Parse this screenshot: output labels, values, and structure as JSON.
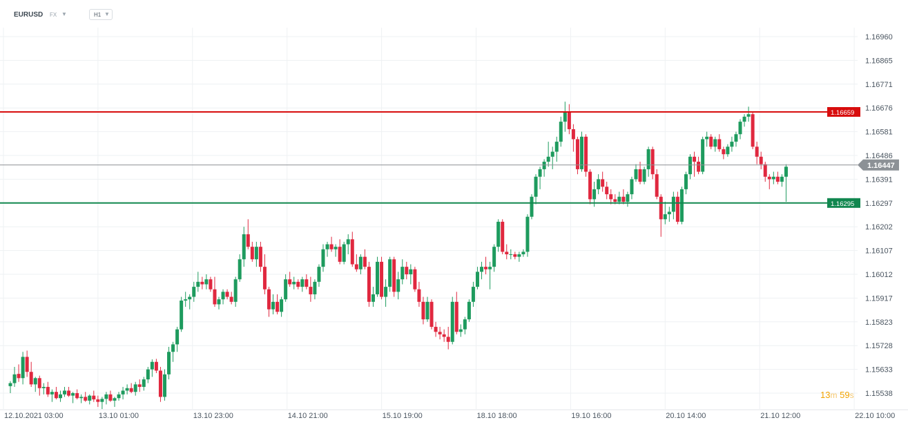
{
  "header": {
    "symbol": "EURUSD",
    "market": "FX",
    "timeframe": "H1"
  },
  "countdown": {
    "minutes": "13",
    "m_unit": "m",
    "seconds": "59",
    "s_unit": "s"
  },
  "colors": {
    "bull": "#1e9b5e",
    "bear": "#e0283f",
    "resistance": "#d80d0d",
    "support": "#11874f",
    "current": "#8c8f93",
    "grid": "#eef1f3"
  },
  "chart_data": {
    "type": "candlestick",
    "symbol": "EURUSD",
    "timeframe": "H1",
    "y_ticks": [
      "1.16960",
      "1.16865",
      "1.16771",
      "1.16676",
      "1.16581",
      "1.16486",
      "1.16391",
      "1.16297",
      "1.16202",
      "1.16107",
      "1.16012",
      "1.15917",
      "1.15823",
      "1.15728",
      "1.15633",
      "1.15538"
    ],
    "ylim": [
      1.15538,
      1.1706
    ],
    "x_ticks": [
      "12.10.2021  03:00",
      "13.10  01:00",
      "13.10  23:00",
      "14.10  21:00",
      "15.10  19:00",
      "18.10  18:00",
      "19.10  16:00",
      "20.10  14:00",
      "21.10  12:00",
      "22.10  10:00"
    ],
    "horizontal_lines": [
      {
        "name": "resistance",
        "label": "1.16659",
        "value": 1.16659
      },
      {
        "name": "support",
        "label": "1.16295",
        "value": 1.16295
      },
      {
        "name": "current",
        "label": "1.16447",
        "value": 1.16447
      }
    ],
    "candles": [
      [
        1.15563,
        1.15583,
        1.15535,
        1.15575
      ],
      [
        1.15575,
        1.1564,
        1.1556,
        1.1561
      ],
      [
        1.15612,
        1.1565,
        1.1558,
        1.15595
      ],
      [
        1.15595,
        1.157,
        1.1557,
        1.1568
      ],
      [
        1.1568,
        1.15705,
        1.156,
        1.1562
      ],
      [
        1.1562,
        1.1566,
        1.1556,
        1.1557
      ],
      [
        1.1557,
        1.156,
        1.1554,
        1.15595
      ],
      [
        1.15595,
        1.15605,
        1.15525,
        1.15555
      ],
      [
        1.15555,
        1.15575,
        1.1553,
        1.1556
      ],
      [
        1.1556,
        1.1558,
        1.1552,
        1.1553
      ],
      [
        1.1553,
        1.1555,
        1.155,
        1.1554
      ],
      [
        1.1554,
        1.1556,
        1.1551,
        1.15515
      ],
      [
        1.15515,
        1.15545,
        1.155,
        1.1553
      ],
      [
        1.1553,
        1.1556,
        1.1552,
        1.15545
      ],
      [
        1.15545,
        1.1556,
        1.1552,
        1.15525
      ],
      [
        1.15525,
        1.1554,
        1.15495,
        1.15535
      ],
      [
        1.15535,
        1.1555,
        1.1551,
        1.15515
      ],
      [
        1.15515,
        1.1553,
        1.15495,
        1.1552
      ],
      [
        1.1552,
        1.1554,
        1.155,
        1.15505
      ],
      [
        1.15505,
        1.1553,
        1.1549,
        1.15525
      ],
      [
        1.15525,
        1.15545,
        1.155,
        1.1551
      ],
      [
        1.1551,
        1.15525,
        1.1548,
        1.155
      ],
      [
        1.155,
        1.1552,
        1.1547,
        1.15512
      ],
      [
        1.15512,
        1.1554,
        1.1549,
        1.1553
      ],
      [
        1.1553,
        1.15545,
        1.155,
        1.15505
      ],
      [
        1.15505,
        1.1552,
        1.1548,
        1.15515
      ],
      [
        1.15515,
        1.1554,
        1.15505,
        1.1553
      ],
      [
        1.1553,
        1.1556,
        1.1551,
        1.15545
      ],
      [
        1.15545,
        1.1557,
        1.1553,
        1.15555
      ],
      [
        1.15555,
        1.15575,
        1.15535,
        1.1554
      ],
      [
        1.1554,
        1.1558,
        1.15525,
        1.1557
      ],
      [
        1.1557,
        1.1559,
        1.1554,
        1.1556
      ],
      [
        1.1556,
        1.156,
        1.15545,
        1.1559
      ],
      [
        1.1559,
        1.1564,
        1.15575,
        1.1563
      ],
      [
        1.1563,
        1.1567,
        1.156,
        1.1566
      ],
      [
        1.1566,
        1.15672,
        1.15615,
        1.15625
      ],
      [
        1.15625,
        1.1564,
        1.155,
        1.1552
      ],
      [
        1.1552,
        1.1563,
        1.15505,
        1.1561
      ],
      [
        1.1561,
        1.1572,
        1.1559,
        1.157
      ],
      [
        1.157,
        1.1574,
        1.1566,
        1.1573
      ],
      [
        1.1573,
        1.158,
        1.157,
        1.1579
      ],
      [
        1.1579,
        1.1592,
        1.1578,
        1.15905
      ],
      [
        1.15905,
        1.1594,
        1.1588,
        1.1591
      ],
      [
        1.1591,
        1.1593,
        1.1587,
        1.1592
      ],
      [
        1.1592,
        1.1598,
        1.159,
        1.1596
      ],
      [
        1.1596,
        1.1602,
        1.1594,
        1.1598
      ],
      [
        1.1598,
        1.16,
        1.1595,
        1.1597
      ],
      [
        1.1597,
        1.1601,
        1.1595,
        1.1599
      ],
      [
        1.1599,
        1.16,
        1.1594,
        1.1595
      ],
      [
        1.1595,
        1.16,
        1.1588,
        1.1589
      ],
      [
        1.1589,
        1.1592,
        1.1587,
        1.1591
      ],
      [
        1.1591,
        1.1595,
        1.1589,
        1.1594
      ],
      [
        1.1594,
        1.1595,
        1.1591,
        1.1592
      ],
      [
        1.1592,
        1.1594,
        1.1589,
        1.159
      ],
      [
        1.159,
        1.16,
        1.1588,
        1.1599
      ],
      [
        1.1599,
        1.1609,
        1.1598,
        1.1607
      ],
      [
        1.1607,
        1.162,
        1.1604,
        1.1617
      ],
      [
        1.1617,
        1.1623,
        1.1611,
        1.1612
      ],
      [
        1.1612,
        1.1614,
        1.1606,
        1.1607
      ],
      [
        1.1607,
        1.1614,
        1.1604,
        1.1612
      ],
      [
        1.1612,
        1.1614,
        1.1602,
        1.1604
      ],
      [
        1.1604,
        1.1609,
        1.1593,
        1.1595
      ],
      [
        1.1595,
        1.1596,
        1.1584,
        1.1587
      ],
      [
        1.1587,
        1.1593,
        1.1585,
        1.159
      ],
      [
        1.159,
        1.1593,
        1.1585,
        1.1586
      ],
      [
        1.1586,
        1.1592,
        1.1584,
        1.1591
      ],
      [
        1.1591,
        1.1601,
        1.159,
        1.1599
      ],
      [
        1.1599,
        1.1602,
        1.1596,
        1.1597
      ],
      [
        1.1597,
        1.16,
        1.1595,
        1.1598
      ],
      [
        1.1598,
        1.1599,
        1.1595,
        1.1596
      ],
      [
        1.1596,
        1.16,
        1.1594,
        1.1599
      ],
      [
        1.1599,
        1.1601,
        1.1595,
        1.1596
      ],
      [
        1.1596,
        1.16,
        1.159,
        1.1593
      ],
      [
        1.1593,
        1.1599,
        1.1591,
        1.1598
      ],
      [
        1.1598,
        1.1605,
        1.1596,
        1.1604
      ],
      [
        1.1604,
        1.1613,
        1.1602,
        1.1611
      ],
      [
        1.1611,
        1.1614,
        1.1608,
        1.1613
      ],
      [
        1.1613,
        1.1616,
        1.161,
        1.1611
      ],
      [
        1.1611,
        1.1613,
        1.1608,
        1.1612
      ],
      [
        1.1612,
        1.1615,
        1.1605,
        1.1606
      ],
      [
        1.1606,
        1.1614,
        1.1605,
        1.1613
      ],
      [
        1.1613,
        1.1617,
        1.1609,
        1.1615
      ],
      [
        1.1615,
        1.1618,
        1.1604,
        1.1605
      ],
      [
        1.1605,
        1.1609,
        1.1602,
        1.1603
      ],
      [
        1.1603,
        1.1609,
        1.1601,
        1.1608
      ],
      [
        1.1608,
        1.1611,
        1.1603,
        1.1604
      ],
      [
        1.1604,
        1.1606,
        1.1588,
        1.159
      ],
      [
        1.159,
        1.1596,
        1.1588,
        1.1593
      ],
      [
        1.1593,
        1.1608,
        1.1592,
        1.1606
      ],
      [
        1.1606,
        1.1608,
        1.1591,
        1.1592
      ],
      [
        1.1592,
        1.1599,
        1.1588,
        1.1596
      ],
      [
        1.1596,
        1.1608,
        1.1594,
        1.1607
      ],
      [
        1.1607,
        1.1608,
        1.1592,
        1.1594
      ],
      [
        1.1594,
        1.1602,
        1.1591,
        1.1599
      ],
      [
        1.1599,
        1.1607,
        1.1597,
        1.1604
      ],
      [
        1.1604,
        1.1606,
        1.1599,
        1.1601
      ],
      [
        1.1601,
        1.1605,
        1.1597,
        1.1603
      ],
      [
        1.1603,
        1.1604,
        1.1594,
        1.1595
      ],
      [
        1.1595,
        1.1598,
        1.1588,
        1.159
      ],
      [
        1.159,
        1.1592,
        1.1581,
        1.1583
      ],
      [
        1.1583,
        1.1592,
        1.1582,
        1.159
      ],
      [
        1.159,
        1.1591,
        1.1579,
        1.158
      ],
      [
        1.158,
        1.1582,
        1.1576,
        1.1578
      ],
      [
        1.1578,
        1.158,
        1.1575,
        1.1577
      ],
      [
        1.1577,
        1.1579,
        1.1574,
        1.1576
      ],
      [
        1.1576,
        1.158,
        1.1571,
        1.1574
      ],
      [
        1.1574,
        1.1592,
        1.1573,
        1.159
      ],
      [
        1.159,
        1.1594,
        1.1577,
        1.1578
      ],
      [
        1.1578,
        1.1581,
        1.1576,
        1.1579
      ],
      [
        1.1579,
        1.1584,
        1.1577,
        1.1583
      ],
      [
        1.1583,
        1.1591,
        1.1582,
        1.159
      ],
      [
        1.159,
        1.1598,
        1.1588,
        1.1596
      ],
      [
        1.1596,
        1.1604,
        1.1595,
        1.1602
      ],
      [
        1.1602,
        1.1606,
        1.1599,
        1.1604
      ],
      [
        1.1604,
        1.1608,
        1.1601,
        1.1603
      ],
      [
        1.1603,
        1.1606,
        1.1595,
        1.1604
      ],
      [
        1.1604,
        1.1613,
        1.1602,
        1.1612
      ],
      [
        1.1612,
        1.1623,
        1.161,
        1.1622
      ],
      [
        1.1622,
        1.1623,
        1.1609,
        1.161
      ],
      [
        1.161,
        1.1613,
        1.1607,
        1.1609
      ],
      [
        1.1609,
        1.1611,
        1.1607,
        1.1609
      ],
      [
        1.1609,
        1.161,
        1.1607,
        1.1608
      ],
      [
        1.1608,
        1.161,
        1.1606,
        1.1609
      ],
      [
        1.1609,
        1.1611,
        1.1608,
        1.161
      ],
      [
        1.161,
        1.1625,
        1.1608,
        1.1624
      ],
      [
        1.1624,
        1.1633,
        1.1623,
        1.1632
      ],
      [
        1.1632,
        1.1641,
        1.1629,
        1.164
      ],
      [
        1.164,
        1.1644,
        1.1635,
        1.1643
      ],
      [
        1.1643,
        1.1647,
        1.164,
        1.1646
      ],
      [
        1.1646,
        1.1654,
        1.1644,
        1.1648
      ],
      [
        1.1648,
        1.1652,
        1.1643,
        1.165
      ],
      [
        1.165,
        1.1656,
        1.1646,
        1.1654
      ],
      [
        1.1654,
        1.1664,
        1.1652,
        1.1662
      ],
      [
        1.1662,
        1.167,
        1.1658,
        1.1666
      ],
      [
        1.1666,
        1.1669,
        1.1657,
        1.1659
      ],
      [
        1.1659,
        1.1661,
        1.165,
        1.1655
      ],
      [
        1.1655,
        1.1656,
        1.1641,
        1.1643
      ],
      [
        1.1643,
        1.1658,
        1.1642,
        1.1656
      ],
      [
        1.1656,
        1.1657,
        1.164,
        1.1642
      ],
      [
        1.1642,
        1.1643,
        1.1629,
        1.1631
      ],
      [
        1.1631,
        1.1638,
        1.1628,
        1.1635
      ],
      [
        1.1635,
        1.1641,
        1.1633,
        1.1639
      ],
      [
        1.1639,
        1.1642,
        1.1634,
        1.1636
      ],
      [
        1.1636,
        1.1638,
        1.1631,
        1.1633
      ],
      [
        1.1633,
        1.1635,
        1.1629,
        1.1631
      ],
      [
        1.1631,
        1.1633,
        1.1629,
        1.163
      ],
      [
        1.163,
        1.1634,
        1.1629,
        1.1632
      ],
      [
        1.1632,
        1.1635,
        1.1629,
        1.163
      ],
      [
        1.163,
        1.1634,
        1.1628,
        1.1633
      ],
      [
        1.1633,
        1.164,
        1.1631,
        1.1639
      ],
      [
        1.1639,
        1.1645,
        1.1638,
        1.1643
      ],
      [
        1.1643,
        1.1646,
        1.1637,
        1.1638
      ],
      [
        1.1638,
        1.1644,
        1.1637,
        1.1643
      ],
      [
        1.1643,
        1.1652,
        1.164,
        1.1651
      ],
      [
        1.1651,
        1.1652,
        1.1639,
        1.1641
      ],
      [
        1.1641,
        1.1643,
        1.1631,
        1.1632
      ],
      [
        1.1632,
        1.1633,
        1.1616,
        1.1623
      ],
      [
        1.1623,
        1.163,
        1.1621,
        1.1625
      ],
      [
        1.1625,
        1.1628,
        1.1622,
        1.1626
      ],
      [
        1.1626,
        1.1634,
        1.1623,
        1.1632
      ],
      [
        1.1632,
        1.1634,
        1.1621,
        1.1622
      ],
      [
        1.1622,
        1.1636,
        1.1621,
        1.1635
      ],
      [
        1.1635,
        1.1642,
        1.1633,
        1.1641
      ],
      [
        1.1641,
        1.1649,
        1.1639,
        1.1648
      ],
      [
        1.1648,
        1.165,
        1.164,
        1.1646
      ],
      [
        1.1646,
        1.1648,
        1.1641,
        1.1642
      ],
      [
        1.1642,
        1.1656,
        1.1641,
        1.1655
      ],
      [
        1.1655,
        1.1658,
        1.1652,
        1.1656
      ],
      [
        1.1656,
        1.1657,
        1.1651,
        1.1652
      ],
      [
        1.1652,
        1.1656,
        1.165,
        1.1655
      ],
      [
        1.1655,
        1.1657,
        1.165,
        1.1651
      ],
      [
        1.1651,
        1.1652,
        1.1647,
        1.1649
      ],
      [
        1.1649,
        1.1653,
        1.1648,
        1.1652
      ],
      [
        1.1652,
        1.1656,
        1.165,
        1.1654
      ],
      [
        1.1654,
        1.1658,
        1.1652,
        1.1657
      ],
      [
        1.1657,
        1.1663,
        1.1655,
        1.1662
      ],
      [
        1.1662,
        1.1665,
        1.166,
        1.1664
      ],
      [
        1.1664,
        1.1668,
        1.1662,
        1.1665
      ],
      [
        1.1665,
        1.1666,
        1.1651,
        1.1652
      ],
      [
        1.1652,
        1.1654,
        1.1645,
        1.1648
      ],
      [
        1.1648,
        1.165,
        1.1643,
        1.1645
      ],
      [
        1.1645,
        1.1646,
        1.1638,
        1.164
      ],
      [
        1.164,
        1.1641,
        1.1635,
        1.1639
      ],
      [
        1.1639,
        1.1642,
        1.1637,
        1.164
      ],
      [
        1.164,
        1.1642,
        1.1637,
        1.1638
      ],
      [
        1.1638,
        1.1641,
        1.1636,
        1.164
      ],
      [
        1.164,
        1.1645,
        1.163,
        1.1644
      ]
    ]
  }
}
